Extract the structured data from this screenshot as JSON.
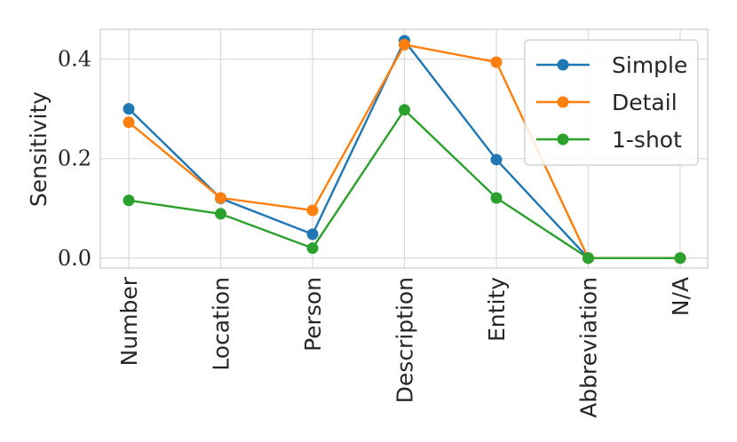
{
  "chart_data": {
    "type": "line",
    "title": "",
    "xlabel": "",
    "ylabel": "Sensitivity",
    "categories": [
      "Number",
      "Location",
      "Person",
      "Description",
      "Entity",
      "Abbreviation",
      "N/A"
    ],
    "yticks": [
      "0.0",
      "0.2",
      "0.4"
    ],
    "ylim": [
      -0.02,
      0.46
    ],
    "grid": true,
    "legend_position": "top-right",
    "series": [
      {
        "name": "Simple",
        "color": "#1f77b4",
        "values": [
          0.3,
          0.12,
          0.048,
          0.437,
          0.198,
          0.0,
          0.0
        ]
      },
      {
        "name": "Detail",
        "color": "#ff7f0e",
        "values": [
          0.273,
          0.121,
          0.096,
          0.429,
          0.394,
          0.0,
          0.0
        ]
      },
      {
        "name": "1-shot",
        "color": "#2ca02c",
        "values": [
          0.116,
          0.089,
          0.02,
          0.298,
          0.121,
          0.0,
          0.0
        ]
      }
    ]
  }
}
